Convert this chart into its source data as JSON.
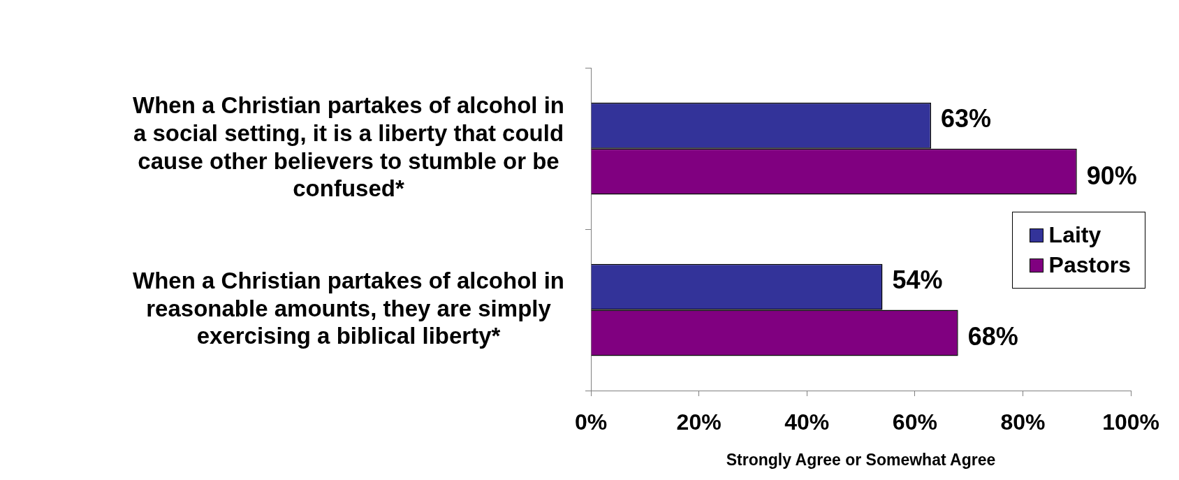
{
  "chart_data": {
    "type": "bar",
    "orientation": "horizontal",
    "xlabel": "Strongly Agree or Somewhat Agree",
    "categories": [
      "When a Christian partakes of alcohol in a social setting, it is a liberty that could cause other believers to stumble or be confused*",
      "When a Christian partakes of alcohol in reasonable amounts, they are simply exercising a biblical liberty*"
    ],
    "series": [
      {
        "name": "Laity",
        "color": "#333399",
        "values": [
          63,
          54
        ],
        "value_labels": [
          "63%",
          "54%"
        ]
      },
      {
        "name": "Pastors",
        "color": "#800080",
        "values": [
          90,
          68
        ],
        "value_labels": [
          "90%",
          "68%"
        ]
      }
    ],
    "xlim": [
      0,
      100
    ],
    "xticks": [
      {
        "value": 0,
        "label": "0%"
      },
      {
        "value": 20,
        "label": "20%"
      },
      {
        "value": 40,
        "label": "40%"
      },
      {
        "value": 60,
        "label": "60%"
      },
      {
        "value": 80,
        "label": "80%"
      },
      {
        "value": 100,
        "label": "100%"
      }
    ],
    "legend": "right"
  }
}
